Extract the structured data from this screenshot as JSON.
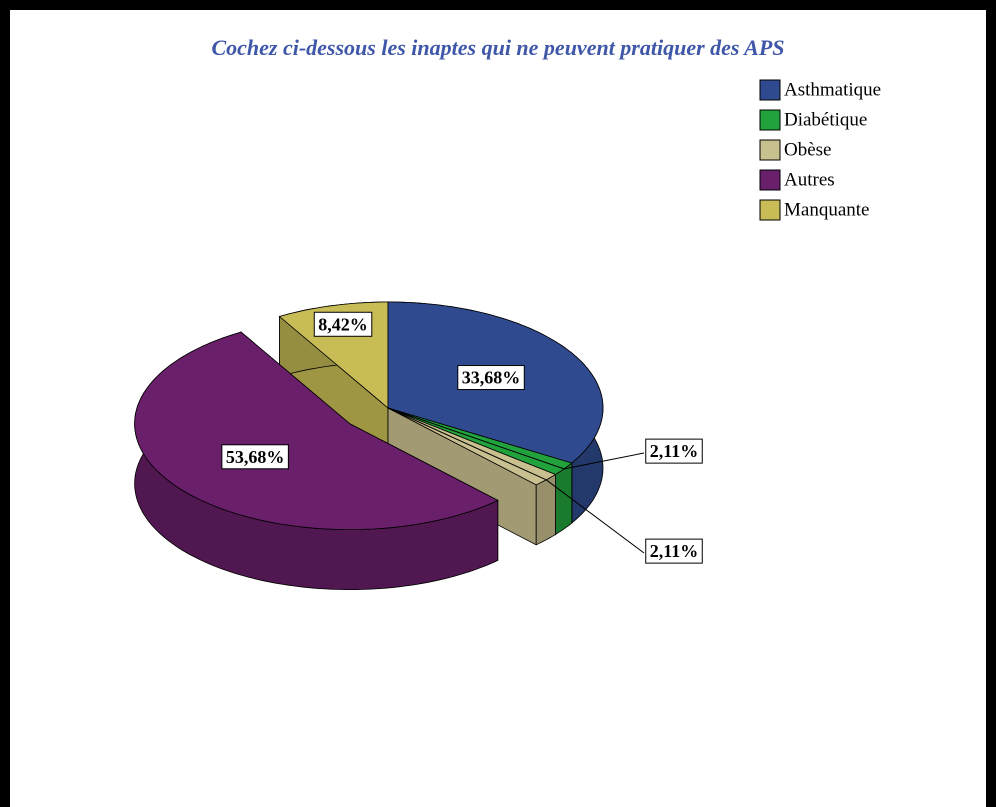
{
  "chart_data": {
    "type": "pie",
    "title": "Cochez ci-dessous les inaptes qui ne peuvent pratiquer des APS",
    "categories": [
      "Asthmatique",
      "Diabétique",
      "Obèse",
      "Autres",
      "Manquante"
    ],
    "values": [
      33.68,
      2.11,
      2.11,
      53.68,
      8.42
    ],
    "value_labels": [
      "33,68%",
      "2,11%",
      "2,11%",
      "53,68%",
      "8,42%"
    ],
    "colors": [
      "#2f4a8e",
      "#22a23c",
      "#c9c08f",
      "#6a1f6b",
      "#c7bc55"
    ],
    "exploded": "Autres",
    "legend": "top-right"
  }
}
